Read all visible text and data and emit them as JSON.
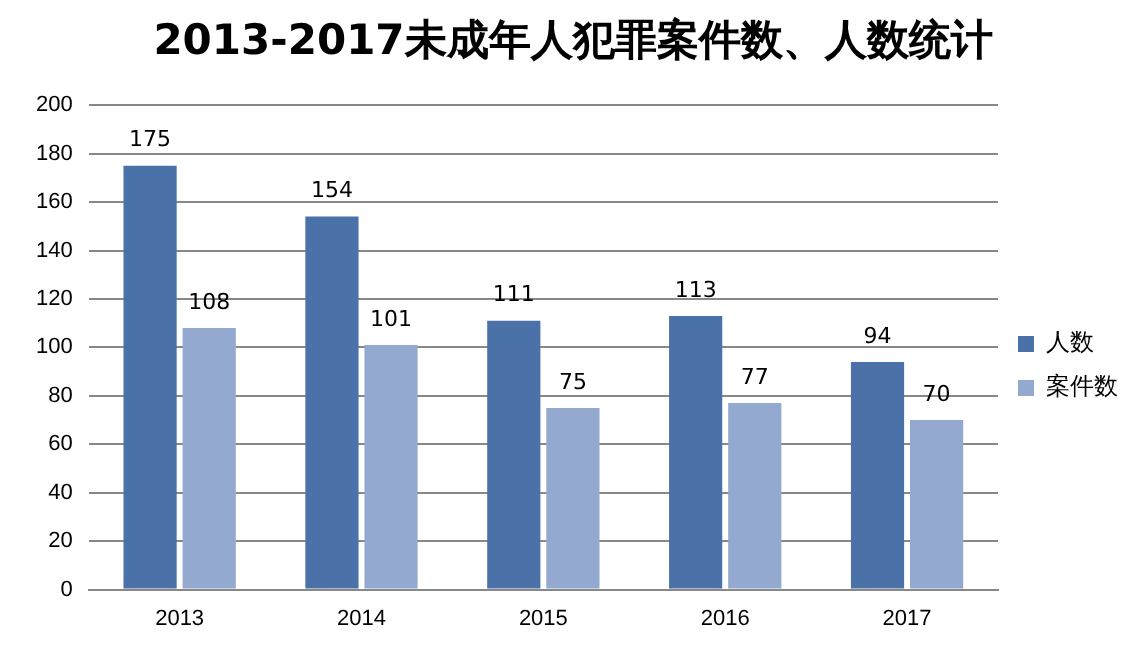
{
  "chart_data": {
    "type": "bar",
    "title": "2013-2017未成年人犯罪案件数、人数统计",
    "categories": [
      "2013",
      "2014",
      "2015",
      "2016",
      "2017"
    ],
    "series": [
      {
        "name": "人数",
        "color": "#4a72a8",
        "values": [
          175,
          154,
          111,
          113,
          94
        ]
      },
      {
        "name": "案件数",
        "color": "#93a9cf",
        "values": [
          108,
          101,
          75,
          77,
          70
        ]
      }
    ],
    "ylim": [
      0,
      200
    ],
    "yticks": [
      0,
      20,
      40,
      60,
      80,
      100,
      120,
      140,
      160,
      180,
      200
    ],
    "grid": "y",
    "legend": "right",
    "data_labels": true
  }
}
